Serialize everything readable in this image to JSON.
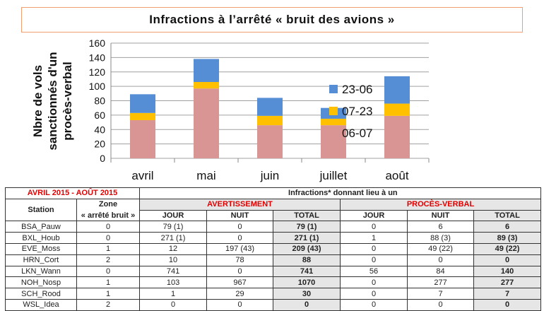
{
  "title": "Infractions à l’arrêté « bruit des avions »",
  "chart_data": {
    "type": "bar",
    "stacked": true,
    "title": "",
    "ylabel": "Nbre de vols sanctionnés d'un procès-verbal",
    "xlabel": "",
    "ylim": [
      0,
      160
    ],
    "yticks": [
      "0",
      "20",
      "40",
      "60",
      "80",
      "100",
      "120",
      "140",
      "160"
    ],
    "grid": true,
    "legend": "right",
    "categories": [
      "avril",
      "mai",
      "juin",
      "juillet",
      "août"
    ],
    "series": [
      {
        "name": "06-07",
        "color": "#d99594",
        "values": [
          53,
          97,
          46,
          46,
          59
        ]
      },
      {
        "name": "07-23",
        "color": "#ffc000",
        "values": [
          10,
          9,
          13,
          9,
          17
        ]
      },
      {
        "name": "23-06",
        "color": "#558ed5",
        "values": [
          26,
          32,
          25,
          15,
          38
        ]
      }
    ]
  },
  "table": {
    "period": "AVRIL 2015 - AOÛT 2015",
    "infractions_header": "Infractions* donnant lieu à un",
    "station_header": "Station",
    "zone_header_1": "Zone",
    "zone_header_2": "« arrêté bruit »",
    "avertissement": "AVERTISSEMENT",
    "proces_verbal": "PROCÈS-VERBAL",
    "sub": [
      "JOUR",
      "NUIT",
      "TOTAL",
      "JOUR",
      "NUIT",
      "TOTAL"
    ],
    "rows": [
      [
        "BSA_Pauw",
        "0",
        "79 (1)",
        "0",
        "79 (1)",
        "0",
        "6",
        "6"
      ],
      [
        "BXL_Houb",
        "0",
        "271 (1)",
        "0",
        "271 (1)",
        "1",
        "88 (3)",
        "89 (3)"
      ],
      [
        "EVE_Moss",
        "1",
        "12",
        "197 (43)",
        "209 (43)",
        "0",
        "49 (22)",
        "49 (22)"
      ],
      [
        "HRN_Cort",
        "2",
        "10",
        "78",
        "88",
        "0",
        "0",
        "0"
      ],
      [
        "LKN_Wann",
        "0",
        "741",
        "0",
        "741",
        "56",
        "84",
        "140"
      ],
      [
        "NOH_Nosp",
        "1",
        "103",
        "967",
        "1070",
        "0",
        "277",
        "277"
      ],
      [
        "SCH_Rood",
        "1",
        "1",
        "29",
        "30",
        "0",
        "7",
        "7"
      ],
      [
        "WSL_Idea",
        "2",
        "0",
        "0",
        "0",
        "0",
        "0",
        "0"
      ]
    ]
  }
}
